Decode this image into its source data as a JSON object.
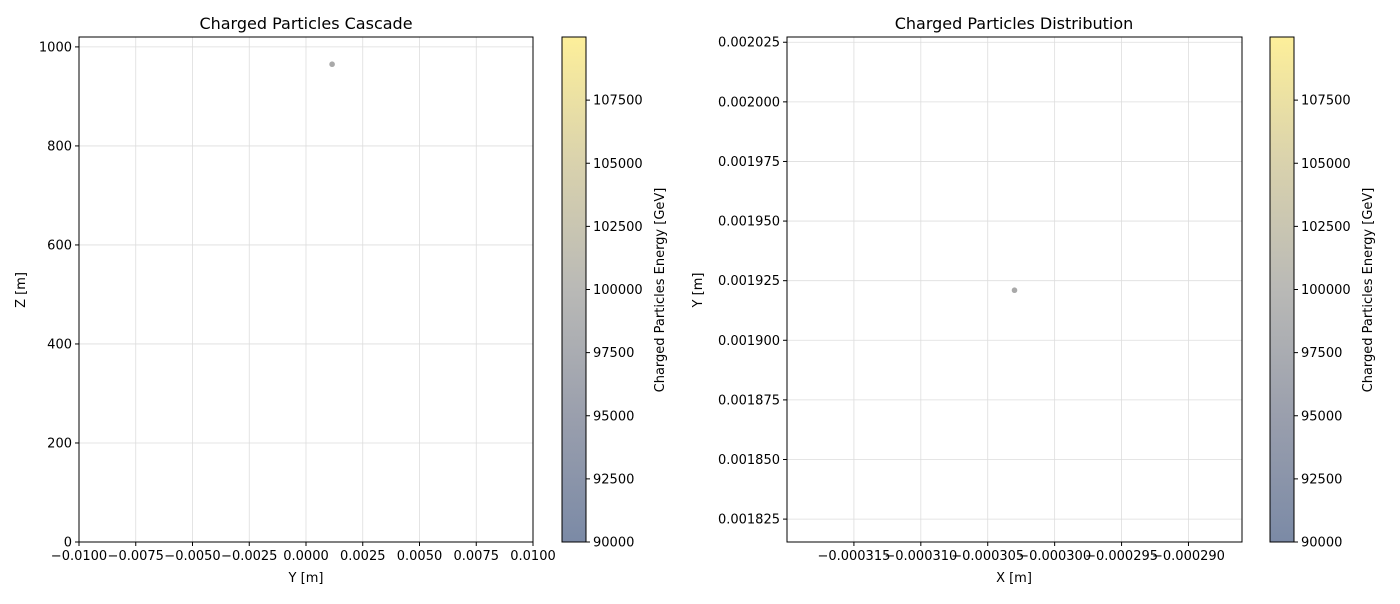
{
  "chart_data": [
    {
      "type": "scatter",
      "title": "Charged Particles Cascade",
      "xlabel": "Y [m]",
      "ylabel": "Z [m]",
      "xlim": [
        -0.01,
        0.01
      ],
      "ylim": [
        0,
        1020
      ],
      "xticks": [
        -0.01,
        -0.0075,
        -0.005,
        -0.0025,
        0.0,
        0.0025,
        0.005,
        0.0075,
        0.01
      ],
      "xtick_labels": [
        "−0.0100",
        "−0.0075",
        "−0.0050",
        "−0.0025",
        "0.0000",
        "0.0025",
        "0.0050",
        "0.0075",
        "0.0100"
      ],
      "yticks": [
        0,
        200,
        400,
        600,
        800,
        1000
      ],
      "ytick_labels": [
        "0",
        "200",
        "400",
        "600",
        "800",
        "1000"
      ],
      "grid": true,
      "points": [
        {
          "x": 0.00115,
          "y": 965,
          "energy": 100000
        }
      ],
      "colorbar": {
        "label": "Charged Particles Energy [GeV]",
        "range": [
          90000,
          110000
        ],
        "ticks": [
          90000,
          92500,
          95000,
          97500,
          100000,
          102500,
          105000,
          107500
        ],
        "tick_labels": [
          "90000",
          "92500",
          "95000",
          "97500",
          "100000",
          "102500",
          "105000",
          "107500"
        ],
        "colormap": "cividis",
        "alpha": 0.5
      }
    },
    {
      "type": "scatter",
      "title": "Charged Particles Distribution",
      "xlabel": "X [m]",
      "ylabel": "Y [m]",
      "xlim": [
        -0.00032,
        -0.000286
      ],
      "ylim": [
        0.0018154,
        0.0020272
      ],
      "xticks": [
        -0.000315,
        -0.00031,
        -0.000305,
        -0.0003,
        -0.000295,
        -0.00029
      ],
      "xtick_labels": [
        "−0.000315",
        "−0.000310",
        "−0.000305",
        "−0.000300",
        "−0.000295",
        "−0.000290"
      ],
      "yticks": [
        0.001825,
        0.00185,
        0.001875,
        0.0019,
        0.001925,
        0.00195,
        0.001975,
        0.002,
        0.002025
      ],
      "ytick_labels": [
        "0.001825",
        "0.001850",
        "0.001875",
        "0.001900",
        "0.001925",
        "0.001950",
        "0.001975",
        "0.002000",
        "0.002025"
      ],
      "grid": true,
      "points": [
        {
          "x": -0.000303,
          "y": 0.001921,
          "energy": 100000
        }
      ],
      "colorbar": {
        "label": "Charged Particles Energy [GeV]",
        "range": [
          90000,
          110000
        ],
        "ticks": [
          90000,
          92500,
          95000,
          97500,
          100000,
          102500,
          105000,
          107500
        ],
        "tick_labels": [
          "90000",
          "92500",
          "95000",
          "97500",
          "100000",
          "102500",
          "105000",
          "107500"
        ],
        "colormap": "cividis",
        "alpha": 0.5
      }
    }
  ]
}
